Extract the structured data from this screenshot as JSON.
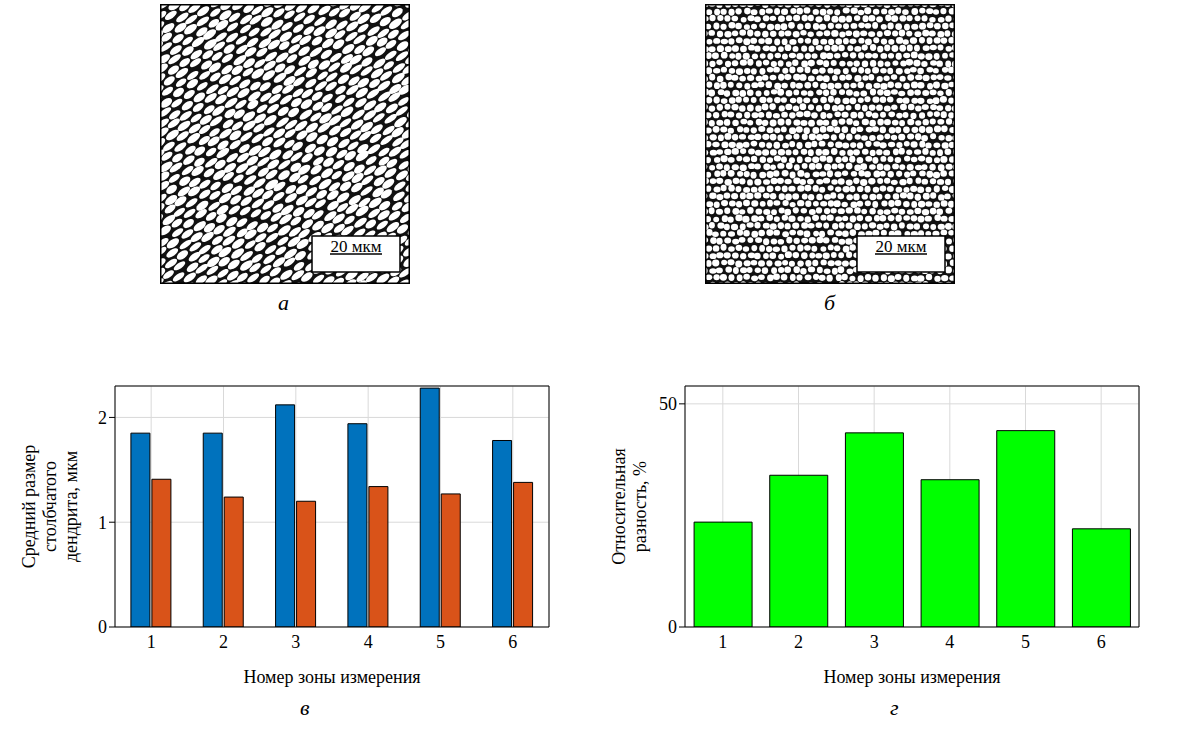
{
  "images": [
    {
      "panel": "а",
      "scale_bar": "20 мкм"
    },
    {
      "panel": "б",
      "scale_bar": "20 мкм"
    }
  ],
  "chart_data": [
    {
      "panel": "в",
      "type": "bar",
      "categories": [
        "1",
        "2",
        "3",
        "4",
        "5",
        "6"
      ],
      "series": [
        {
          "color": "#0072bd",
          "values": [
            1.85,
            1.85,
            2.12,
            1.94,
            2.28,
            1.78
          ]
        },
        {
          "color": "#d95319",
          "values": [
            1.41,
            1.24,
            1.2,
            1.34,
            1.27,
            1.38
          ]
        }
      ],
      "x_label": "Номер зоны измерения",
      "y_label": "Средний размер столбчатого дендрита, мкм",
      "ylim": [
        0,
        2.3
      ],
      "yticks": [
        0,
        1,
        2
      ],
      "grid": true
    },
    {
      "panel": "г",
      "type": "bar",
      "categories": [
        "1",
        "2",
        "3",
        "4",
        "5",
        "6"
      ],
      "values": [
        23.5,
        34,
        43.5,
        33,
        44,
        22
      ],
      "color": "#00ff00",
      "x_label": "Номер зоны измерения",
      "y_label": "Относительная разность, %",
      "ylim": [
        0,
        54
      ],
      "yticks": [
        0,
        50
      ],
      "grid": true
    }
  ]
}
